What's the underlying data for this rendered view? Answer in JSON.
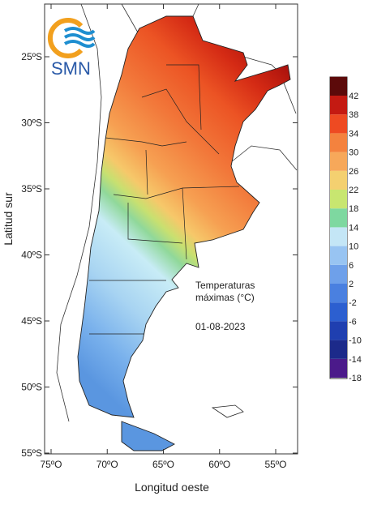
{
  "logo": {
    "text": "SMN"
  },
  "x_axis": {
    "label": "Longitud oeste",
    "ticks": [
      {
        "value": 75,
        "label": "75ºO"
      },
      {
        "value": 70,
        "label": "70ºO"
      },
      {
        "value": 65,
        "label": "65ºO"
      },
      {
        "value": 60,
        "label": "60ºO"
      },
      {
        "value": 55,
        "label": "55ºO"
      }
    ]
  },
  "y_axis": {
    "label": "Latitud sur",
    "ticks": [
      {
        "value": 25,
        "label": "25ºS"
      },
      {
        "value": 30,
        "label": "30ºS"
      },
      {
        "value": 35,
        "label": "35ºS"
      },
      {
        "value": 40,
        "label": "40ºS"
      },
      {
        "value": 45,
        "label": "45ºS"
      },
      {
        "value": 50,
        "label": "50ºS"
      },
      {
        "value": 55,
        "label": "55ºS"
      }
    ]
  },
  "annotation": {
    "title_line1": "Temperaturas",
    "title_line2": "máximas (°C)",
    "date": "01-08-2023"
  },
  "colorbar": {
    "ticks": [
      -18,
      -14,
      -10,
      -6,
      -2,
      2,
      6,
      10,
      14,
      18,
      22,
      26,
      30,
      34,
      38,
      42
    ],
    "colors": [
      "#4b1a8a",
      "#1c2a8a",
      "#1f3fb0",
      "#2c5fd0",
      "#4a80e0",
      "#6ea0ea",
      "#98c4f2",
      "#c4e6f6",
      "#7ed8a0",
      "#c8e670",
      "#f4d070",
      "#f7a85a",
      "#f4823e",
      "#ee4a22",
      "#c41a12",
      "#5c0a0a"
    ]
  }
}
